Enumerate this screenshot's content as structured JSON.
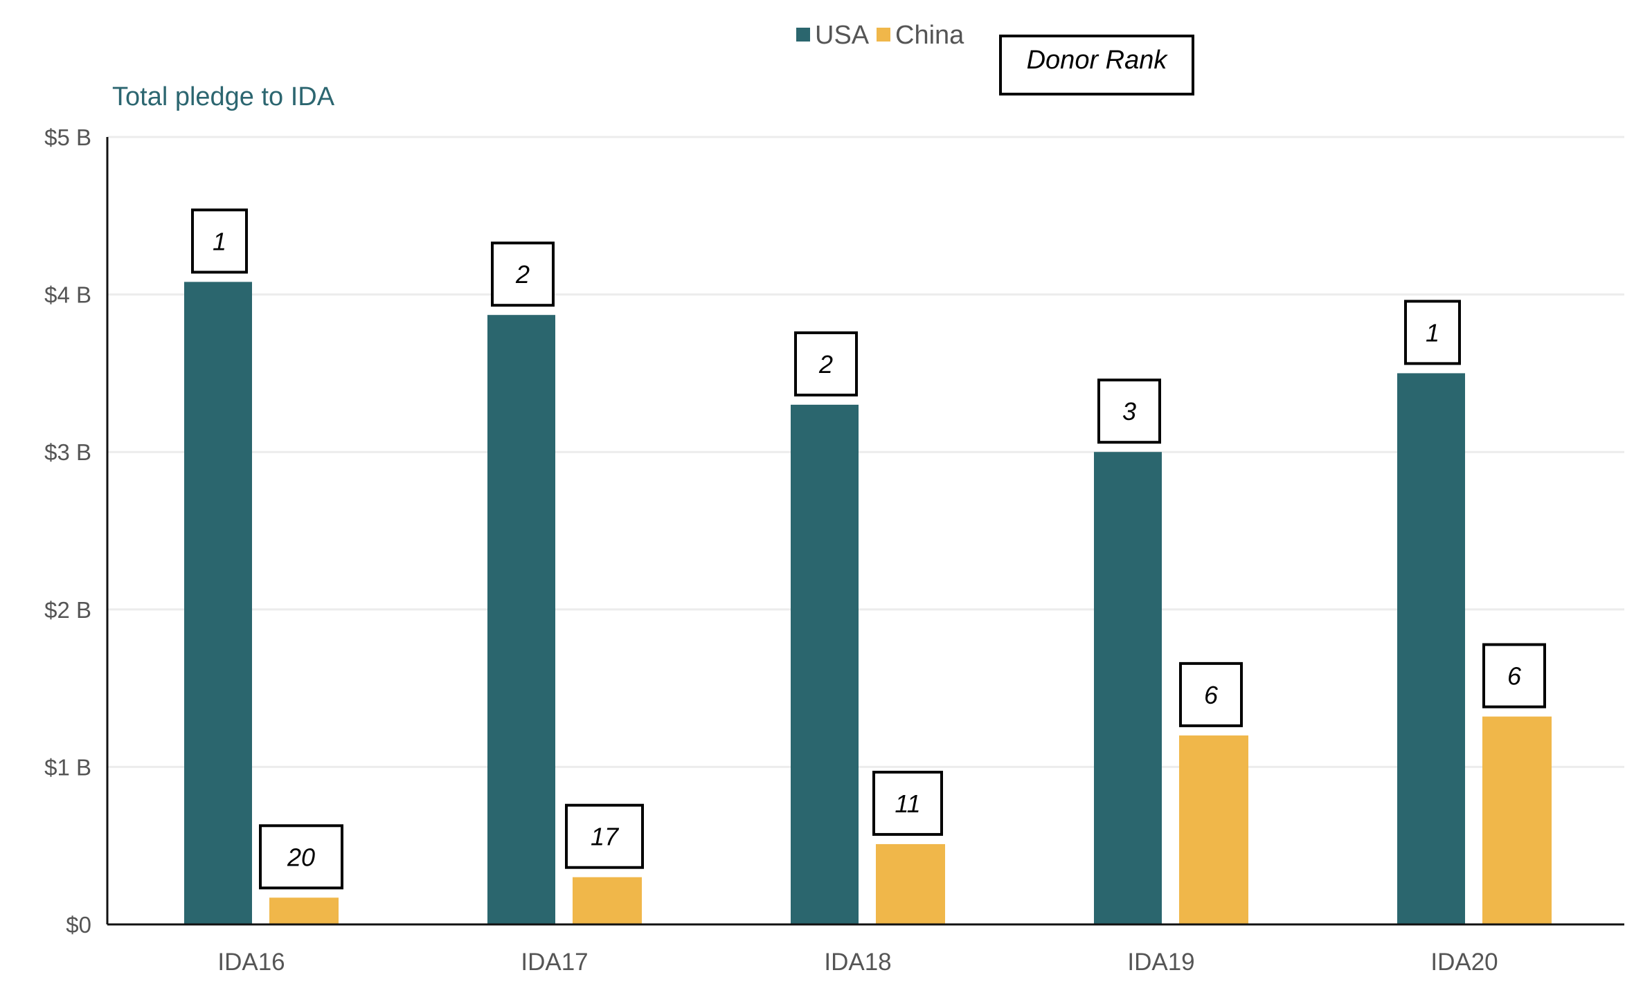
{
  "chart_data": {
    "type": "bar",
    "title": "",
    "ylabel": "Total pledge to IDA",
    "xlabel": "",
    "ylim": [
      0,
      5
    ],
    "yticks": [
      0,
      1,
      2,
      3,
      4,
      5
    ],
    "ytick_labels": [
      "$0",
      "$1 B",
      "$2 B",
      "$3 B",
      "$4 B",
      "$5 B"
    ],
    "categories": [
      "IDA16",
      "IDA17",
      "IDA18",
      "IDA19",
      "IDA20"
    ],
    "series": [
      {
        "name": "USA",
        "color": "#2b666e",
        "values": [
          4.08,
          3.87,
          3.3,
          3.0,
          3.5
        ],
        "ranks": [
          "1",
          "2",
          "2",
          "3",
          "1"
        ]
      },
      {
        "name": "China",
        "color": "#f0b74a",
        "values": [
          0.17,
          0.3,
          0.51,
          1.2,
          1.32
        ],
        "ranks": [
          "20",
          "17",
          "11",
          "6",
          "6"
        ]
      }
    ],
    "legend": {
      "position": "top-center"
    },
    "annotation_title": "Donor Rank",
    "grid": true
  },
  "colors": {
    "grid": "#ececec",
    "axis": "#111111"
  }
}
